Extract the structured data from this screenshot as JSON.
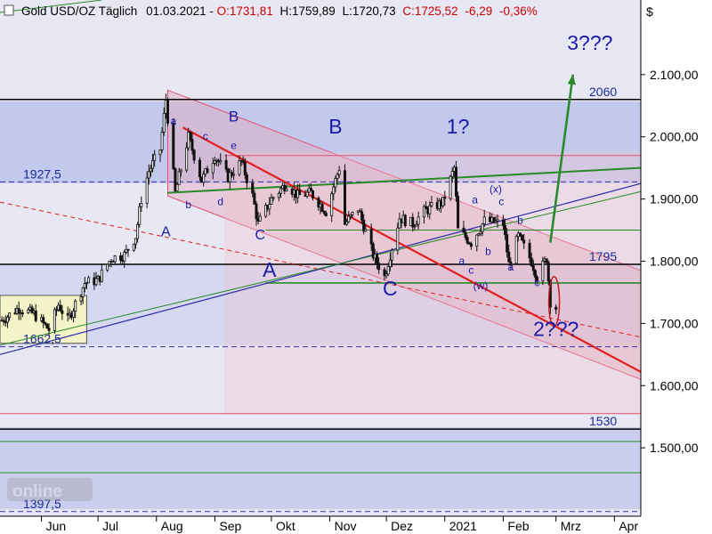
{
  "header": {
    "title": "Gold USD/OZ Täglich",
    "date": "01.03.2021",
    "open": "O:1731,81",
    "high": "H:1759,89",
    "low": "L:1720,73",
    "close": "C:1725,52",
    "change": "-6,29",
    "change_pct": "-0,36%",
    "currency_symbol": "$"
  },
  "watermark": "Tradesignal online",
  "chart_data": {
    "type": "candlestick",
    "title": "Gold USD/OZ Täglich",
    "ylim": [
      1390,
      2220
    ],
    "y_ticks": [
      "2.100,00",
      "2.000,00",
      "1.900,00",
      "1.800,00",
      "1.700,00",
      "1.600,00",
      "1.500,00"
    ],
    "y_tick_values": [
      2100,
      2000,
      1900,
      1800,
      1700,
      1600,
      1500
    ],
    "x_ticks": [
      "Jun",
      "Jul",
      "Aug",
      "Sep",
      "Okt",
      "Nov",
      "Dez",
      "2021",
      "Feb",
      "Mrz",
      "Apr"
    ],
    "x_tick_dates": [
      "2020-06-01",
      "2020-07-01",
      "2020-08-01",
      "2020-09-01",
      "2020-10-01",
      "2020-11-01",
      "2020-12-01",
      "2021-01-01",
      "2021-02-01",
      "2021-03-01",
      "2021-04-01"
    ],
    "x_range": [
      "2020-05-10",
      "2021-04-15"
    ],
    "price_path": [
      [
        "2020-05-11",
        1705
      ],
      [
        "2020-05-20",
        1725
      ],
      [
        "2020-05-28",
        1715
      ],
      [
        "2020-06-05",
        1690
      ],
      [
        "2020-06-10",
        1730
      ],
      [
        "2020-06-15",
        1705
      ],
      [
        "2020-06-24",
        1765
      ],
      [
        "2020-07-01",
        1770
      ],
      [
        "2020-07-08",
        1805
      ],
      [
        "2020-07-15",
        1810
      ],
      [
        "2020-07-21",
        1840
      ],
      [
        "2020-07-24",
        1900
      ],
      [
        "2020-07-28",
        1945
      ],
      [
        "2020-08-03",
        1980
      ],
      [
        "2020-08-06",
        2060
      ],
      [
        "2020-08-11",
        1910
      ],
      [
        "2020-08-18",
        2000
      ],
      [
        "2020-08-25",
        1930
      ],
      [
        "2020-09-01",
        1970
      ],
      [
        "2020-09-08",
        1935
      ],
      [
        "2020-09-15",
        1960
      ],
      [
        "2020-09-21",
        1905
      ],
      [
        "2020-09-24",
        1860
      ],
      [
        "2020-10-01",
        1900
      ],
      [
        "2020-10-09",
        1925
      ],
      [
        "2020-10-15",
        1905
      ],
      [
        "2020-10-22",
        1910
      ],
      [
        "2020-10-30",
        1880
      ],
      [
        "2020-11-06",
        1950
      ],
      [
        "2020-11-09",
        1860
      ],
      [
        "2020-11-16",
        1885
      ],
      [
        "2020-11-24",
        1810
      ],
      [
        "2020-11-30",
        1775
      ],
      [
        "2020-12-08",
        1870
      ],
      [
        "2020-12-15",
        1860
      ],
      [
        "2020-12-21",
        1880
      ],
      [
        "2020-12-31",
        1895
      ],
      [
        "2021-01-06",
        1950
      ],
      [
        "2021-01-08",
        1850
      ],
      [
        "2021-01-15",
        1830
      ],
      [
        "2021-01-22",
        1865
      ],
      [
        "2021-02-01",
        1860
      ],
      [
        "2021-02-04",
        1795
      ],
      [
        "2021-02-09",
        1840
      ],
      [
        "2021-02-16",
        1800
      ],
      [
        "2021-02-19",
        1775
      ],
      [
        "2021-02-24",
        1805
      ],
      [
        "2021-02-26",
        1735
      ],
      [
        "2021-03-01",
        1725
      ]
    ],
    "levels": [
      {
        "value": 2060,
        "label": "2060",
        "color": "#000000",
        "style": "solid"
      },
      {
        "value": 1927.5,
        "label": "1927,5",
        "color": "#3030b0",
        "style": "dashed"
      },
      {
        "value": 1795,
        "label": "1795",
        "color": "#000000",
        "style": "solid"
      },
      {
        "value": 1662.5,
        "label": "1662,5",
        "color": "#3030b0",
        "style": "dashed"
      },
      {
        "value": 1530,
        "label": "1530",
        "color": "#000000",
        "style": "solid"
      },
      {
        "value": 1397.5,
        "label": "1397,5",
        "color": "#3030b0",
        "style": "dashed"
      }
    ],
    "green_levels": [
      1850,
      1765,
      1510,
      1460
    ],
    "red_levels": [
      1970,
      1555
    ],
    "wave_labels": [
      {
        "text": "a",
        "date": "2020-08-10",
        "price": 2020,
        "size": "small"
      },
      {
        "text": "c",
        "date": "2020-08-27",
        "price": 1995,
        "size": "small"
      },
      {
        "text": "B",
        "date": "2020-09-11",
        "price": 2025,
        "size": "medium"
      },
      {
        "text": "e",
        "date": "2020-09-11",
        "price": 1980,
        "size": "small"
      },
      {
        "text": "A",
        "date": "2020-08-06",
        "price": 1840,
        "size": "medium-small"
      },
      {
        "text": "b",
        "date": "2020-08-18",
        "price": 1885,
        "size": "small"
      },
      {
        "text": "d",
        "date": "2020-09-04",
        "price": 1890,
        "size": "small"
      },
      {
        "text": "C",
        "date": "2020-09-25",
        "price": 1835,
        "size": "medium-small"
      },
      {
        "text": "A",
        "date": "2020-09-30",
        "price": 1775,
        "size": "large"
      },
      {
        "text": "B",
        "date": "2020-11-04",
        "price": 2005,
        "size": "large"
      },
      {
        "text": "C",
        "date": "2020-12-03",
        "price": 1745,
        "size": "large"
      },
      {
        "text": "1?",
        "date": "2021-01-08",
        "price": 2005,
        "size": "large"
      },
      {
        "text": "a",
        "date": "2021-01-10",
        "price": 1795,
        "size": "small"
      },
      {
        "text": "c",
        "date": "2021-01-15",
        "price": 1780,
        "size": "small"
      },
      {
        "text": "(w)",
        "date": "2021-01-20",
        "price": 1755,
        "size": "small"
      },
      {
        "text": "a",
        "date": "2021-01-17",
        "price": 1893,
        "size": "small"
      },
      {
        "text": "(x)",
        "date": "2021-01-28",
        "price": 1910,
        "size": "small"
      },
      {
        "text": "c",
        "date": "2021-01-31",
        "price": 1890,
        "size": "small"
      },
      {
        "text": "b",
        "date": "2021-01-24",
        "price": 1810,
        "size": "small"
      },
      {
        "text": "a",
        "date": "2021-02-05",
        "price": 1785,
        "size": "small"
      },
      {
        "text": "b",
        "date": "2021-02-10",
        "price": 1860,
        "size": "small"
      },
      {
        "text": "c",
        "date": "2021-02-19",
        "price": 1760,
        "size": "small"
      },
      {
        "text": "2???",
        "date": "2021-03-01",
        "price": 1680,
        "size": "large"
      },
      {
        "text": "3???",
        "date": "2021-03-19",
        "price": 2140,
        "size": "large"
      }
    ]
  }
}
